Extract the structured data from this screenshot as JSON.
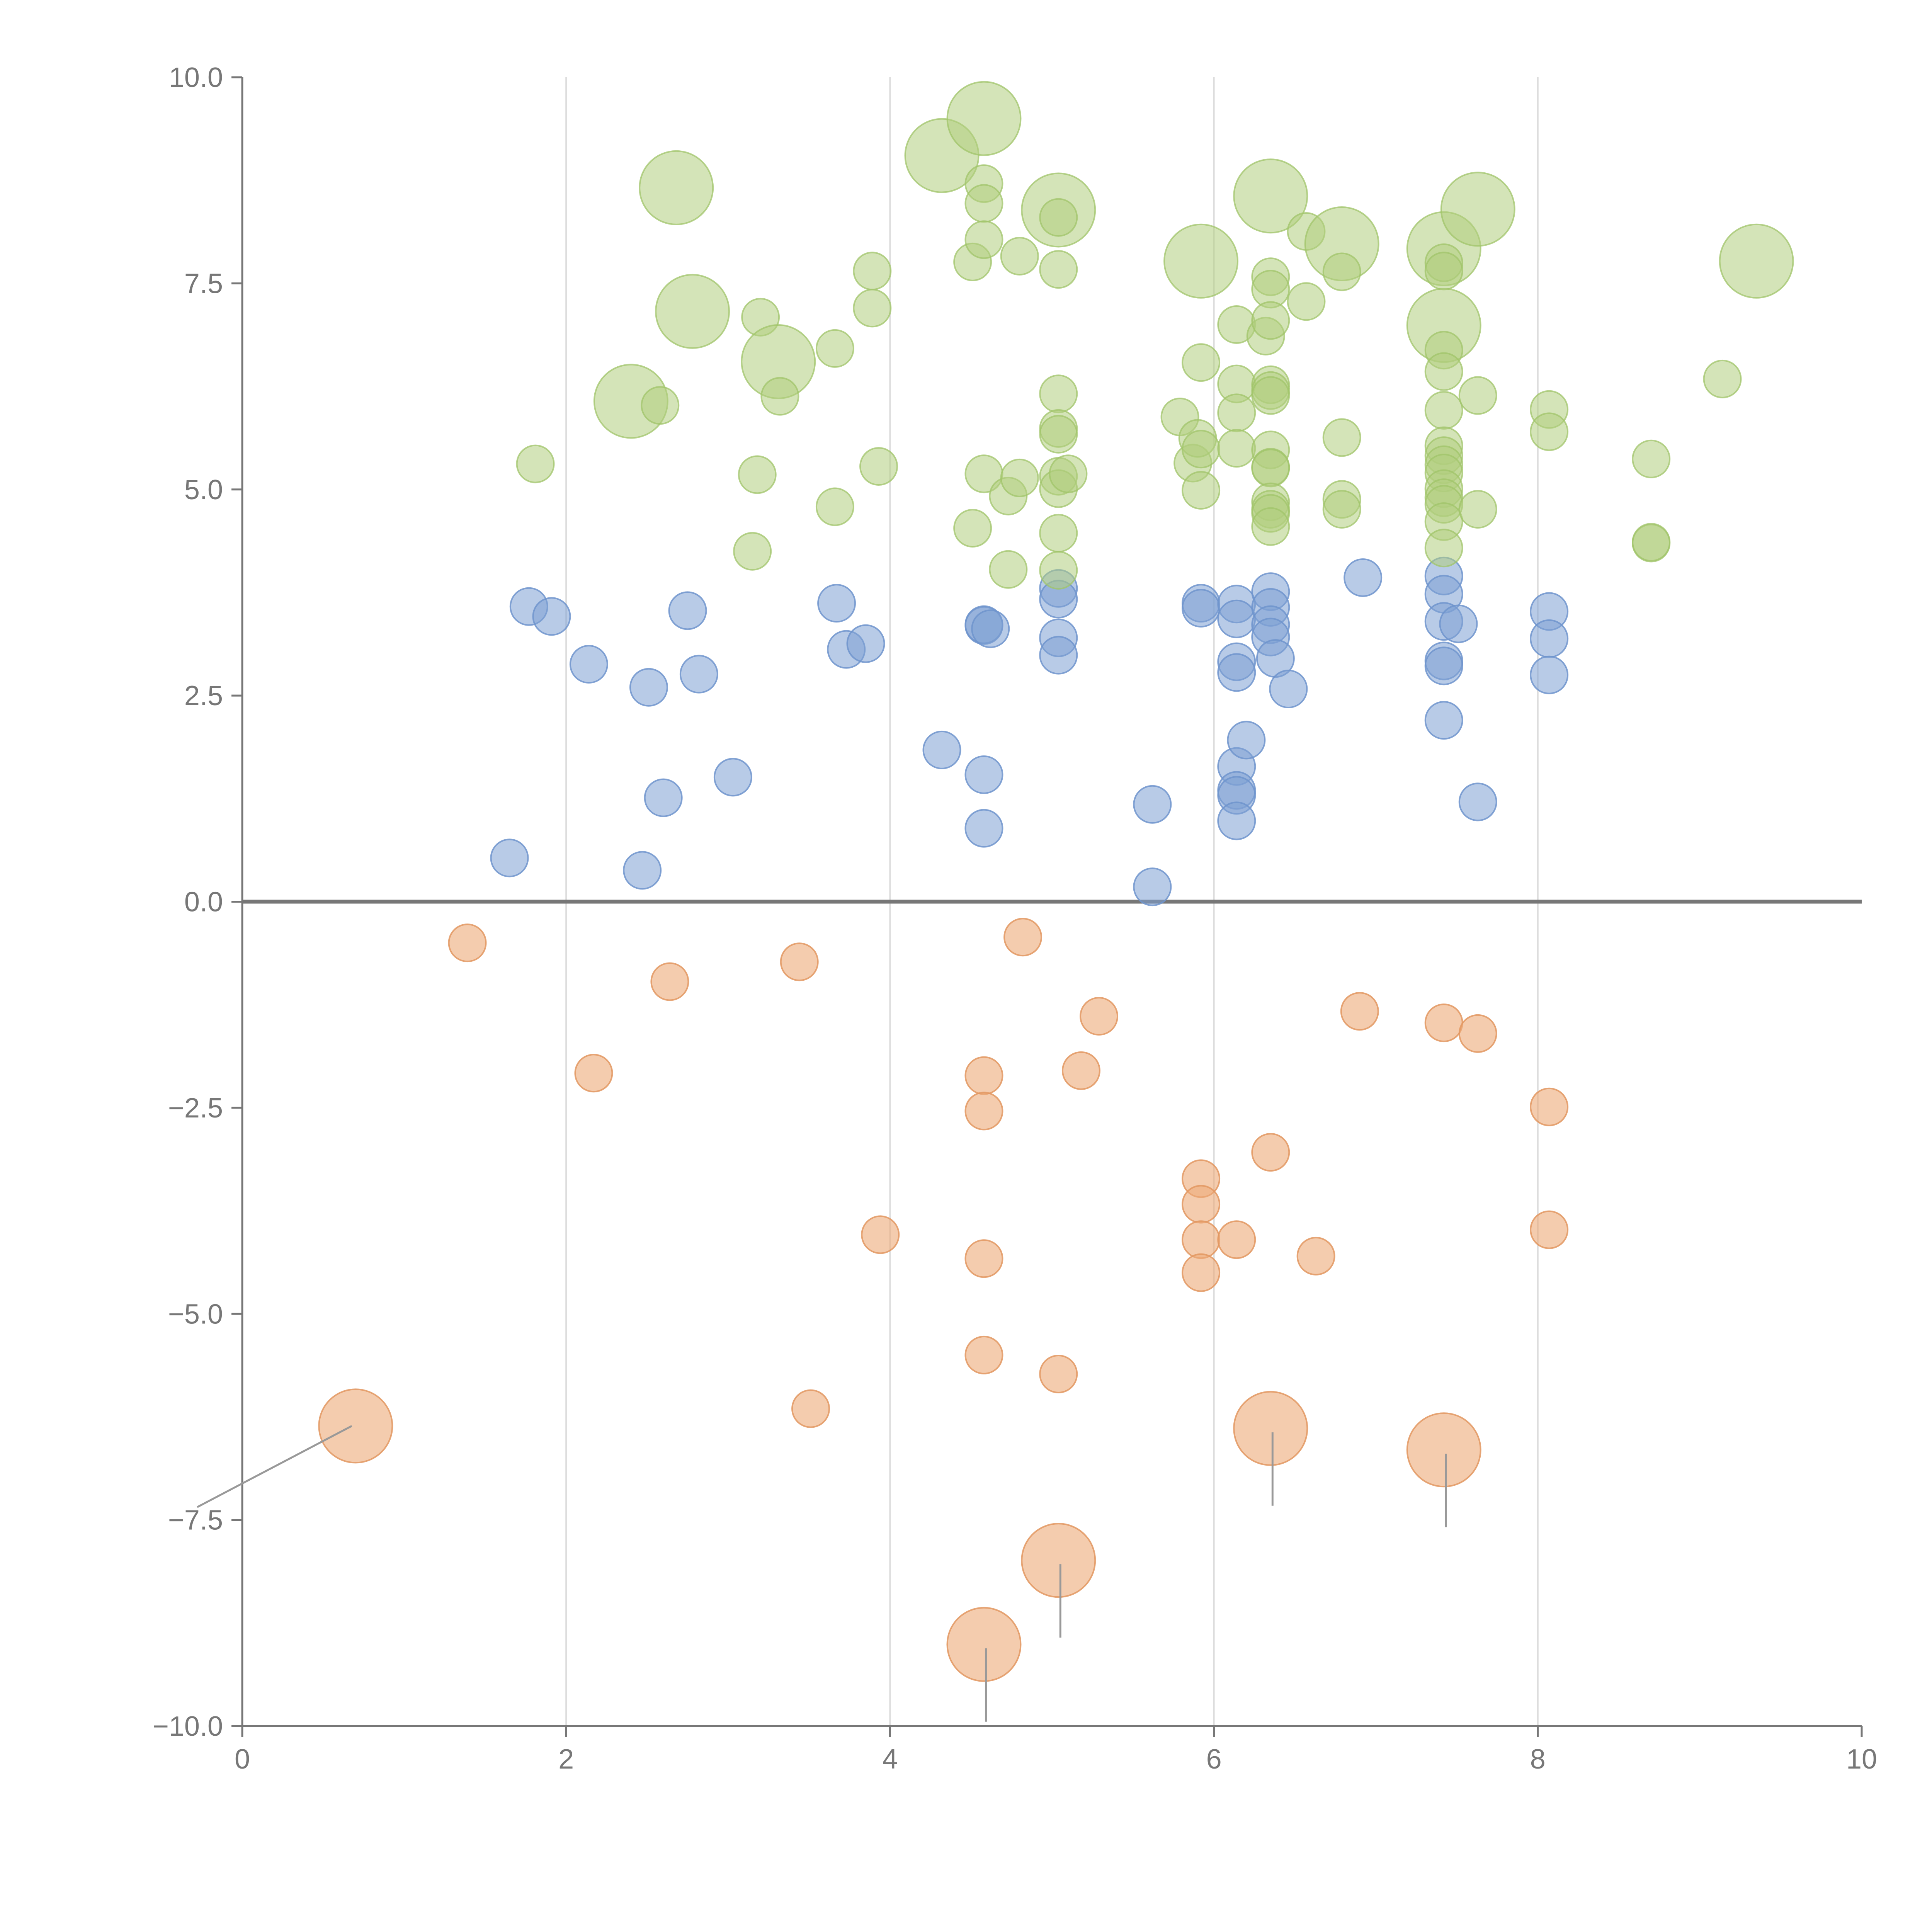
{
  "chart_data": {
    "type": "scatter",
    "subtype": "bubble",
    "title": "",
    "xlabel": "",
    "ylabel": "",
    "xlim": [
      0,
      10
    ],
    "ylim": [
      -10,
      10
    ],
    "x_ticks": [
      0,
      2,
      4,
      6,
      8,
      10
    ],
    "x_tick_labels": [
      "0",
      "2",
      "4",
      "6",
      "8",
      "10"
    ],
    "y_ticks": [
      -10,
      -7.5,
      -5,
      -2.5,
      0,
      2.5,
      5,
      7.5,
      10
    ],
    "y_tick_labels": [
      "−10.0",
      "−7.5",
      "−5.0",
      "−2.5",
      "0.0",
      "2.5",
      "5.0",
      "7.5",
      "10.0"
    ],
    "grid": "vertical lines at x ticks",
    "zero_line": true,
    "colors": {
      "blue": "#7ea0d4",
      "green": "#b0ce7e",
      "orange": "#ecaa78",
      "axis": "#777777",
      "grid": "#dddddd"
    },
    "series": [
      {
        "name": "blue",
        "color": "#7ea0d4",
        "points": [
          [
            1.65,
            0.53,
            1
          ],
          [
            1.77,
            3.58,
            1
          ],
          [
            1.91,
            3.46,
            1
          ],
          [
            2.14,
            2.88,
            1
          ],
          [
            2.47,
            0.38,
            1
          ],
          [
            2.51,
            2.6,
            1
          ],
          [
            2.6,
            1.26,
            1
          ],
          [
            2.75,
            3.53,
            1
          ],
          [
            2.82,
            2.76,
            1
          ],
          [
            3.03,
            1.51,
            1
          ],
          [
            3.67,
            3.62,
            1
          ],
          [
            3.73,
            3.06,
            1
          ],
          [
            3.85,
            3.13,
            1
          ],
          [
            4.32,
            1.84,
            1
          ],
          [
            4.58,
            3.35,
            1
          ],
          [
            4.58,
            3.36,
            1
          ],
          [
            4.58,
            1.54,
            1
          ],
          [
            4.58,
            0.89,
            1
          ],
          [
            4.62,
            3.31,
            1
          ],
          [
            5.04,
            3.8,
            1
          ],
          [
            5.04,
            3.67,
            1
          ],
          [
            5.04,
            3.2,
            1
          ],
          [
            5.04,
            2.99,
            1
          ],
          [
            5.62,
            1.18,
            1
          ],
          [
            5.62,
            0.18,
            1
          ],
          [
            5.92,
            3.62,
            1
          ],
          [
            5.92,
            3.56,
            1
          ],
          [
            6.14,
            3.61,
            1
          ],
          [
            6.14,
            3.43,
            1
          ],
          [
            6.14,
            2.91,
            1
          ],
          [
            6.14,
            2.78,
            1
          ],
          [
            6.14,
            1.64,
            1
          ],
          [
            6.14,
            1.35,
            1
          ],
          [
            6.14,
            1.29,
            1
          ],
          [
            6.14,
            0.98,
            1
          ],
          [
            6.2,
            1.96,
            1
          ],
          [
            6.35,
            3.76,
            1
          ],
          [
            6.35,
            3.57,
            1
          ],
          [
            6.35,
            3.36,
            1
          ],
          [
            6.35,
            3.21,
            1
          ],
          [
            6.38,
            2.95,
            1
          ],
          [
            6.46,
            2.58,
            1
          ],
          [
            6.92,
            3.93,
            1
          ],
          [
            7.42,
            3.95,
            1
          ],
          [
            7.42,
            3.73,
            1
          ],
          [
            7.42,
            3.4,
            1
          ],
          [
            7.42,
            2.92,
            1
          ],
          [
            7.42,
            2.86,
            1
          ],
          [
            7.42,
            2.2,
            1
          ],
          [
            7.51,
            3.37,
            1
          ],
          [
            7.63,
            1.21,
            1
          ],
          [
            8.07,
            3.52,
            1
          ],
          [
            8.07,
            3.19,
            1
          ],
          [
            8.07,
            2.75,
            1
          ]
        ]
      },
      {
        "name": "green",
        "color": "#b0ce7e",
        "points": [
          [
            1.81,
            5.31,
            1
          ],
          [
            2.4,
            6.07,
            2
          ],
          [
            2.58,
            6.02,
            1
          ],
          [
            2.68,
            8.66,
            2
          ],
          [
            2.78,
            7.16,
            2
          ],
          [
            3.15,
            4.25,
            1
          ],
          [
            3.18,
            5.18,
            1
          ],
          [
            3.2,
            7.09,
            1
          ],
          [
            3.31,
            6.55,
            2
          ],
          [
            3.32,
            6.13,
            1
          ],
          [
            3.66,
            6.71,
            1
          ],
          [
            3.66,
            4.79,
            1
          ],
          [
            3.89,
            7.65,
            1
          ],
          [
            3.89,
            7.2,
            1
          ],
          [
            3.93,
            5.28,
            1
          ],
          [
            4.32,
            9.05,
            2
          ],
          [
            4.51,
            7.76,
            1
          ],
          [
            4.51,
            4.53,
            1
          ],
          [
            4.58,
            9.5,
            2
          ],
          [
            4.58,
            8.71,
            1
          ],
          [
            4.58,
            8.47,
            1
          ],
          [
            4.58,
            8.03,
            1
          ],
          [
            4.58,
            5.19,
            1
          ],
          [
            4.73,
            4.92,
            1
          ],
          [
            4.73,
            4.03,
            1
          ],
          [
            4.8,
            7.83,
            1
          ],
          [
            4.8,
            5.14,
            1
          ],
          [
            5.04,
            8.39,
            2
          ],
          [
            5.04,
            8.3,
            1
          ],
          [
            5.04,
            7.67,
            1
          ],
          [
            5.04,
            6.16,
            1
          ],
          [
            5.04,
            5.74,
            1
          ],
          [
            5.04,
            5.67,
            1
          ],
          [
            5.04,
            5.16,
            1
          ],
          [
            5.04,
            5.01,
            1
          ],
          [
            5.04,
            4.47,
            1
          ],
          [
            5.04,
            4.02,
            1
          ],
          [
            5.1,
            5.19,
            1
          ],
          [
            5.79,
            5.88,
            1
          ],
          [
            5.87,
            5.32,
            1
          ],
          [
            5.9,
            5.62,
            1
          ],
          [
            5.92,
            7.77,
            2
          ],
          [
            5.92,
            6.54,
            1
          ],
          [
            5.92,
            5.49,
            1
          ],
          [
            5.92,
            4.99,
            1
          ],
          [
            6.14,
            7.0,
            1
          ],
          [
            6.14,
            6.28,
            1
          ],
          [
            6.14,
            5.93,
            1
          ],
          [
            6.14,
            5.5,
            1
          ],
          [
            6.32,
            6.86,
            1
          ],
          [
            6.35,
            8.56,
            2
          ],
          [
            6.35,
            7.58,
            1
          ],
          [
            6.35,
            7.43,
            1
          ],
          [
            6.35,
            7.05,
            1
          ],
          [
            6.35,
            6.27,
            1
          ],
          [
            6.35,
            6.2,
            1
          ],
          [
            6.35,
            6.14,
            1
          ],
          [
            6.35,
            5.48,
            1
          ],
          [
            6.35,
            5.27,
            1
          ],
          [
            6.35,
            5.26,
            1
          ],
          [
            6.35,
            4.85,
            1
          ],
          [
            6.35,
            4.76,
            1
          ],
          [
            6.35,
            4.71,
            1
          ],
          [
            6.35,
            4.55,
            1
          ],
          [
            6.57,
            7.28,
            1
          ],
          [
            6.57,
            8.13,
            1
          ],
          [
            6.79,
            7.98,
            2
          ],
          [
            6.79,
            7.64,
            1
          ],
          [
            6.79,
            5.63,
            1
          ],
          [
            6.79,
            4.88,
            1
          ],
          [
            6.79,
            4.76,
            1
          ],
          [
            7.42,
            7.92,
            2
          ],
          [
            7.42,
            7.75,
            1
          ],
          [
            7.42,
            7.65,
            1
          ],
          [
            7.42,
            6.99,
            2
          ],
          [
            7.42,
            6.69,
            1
          ],
          [
            7.42,
            6.43,
            1
          ],
          [
            7.42,
            5.96,
            1
          ],
          [
            7.42,
            5.53,
            1
          ],
          [
            7.42,
            5.41,
            1
          ],
          [
            7.42,
            5.3,
            1
          ],
          [
            7.42,
            5.2,
            1
          ],
          [
            7.42,
            5.01,
            1
          ],
          [
            7.42,
            4.9,
            1
          ],
          [
            7.42,
            4.82,
            1
          ],
          [
            7.42,
            4.61,
            1
          ],
          [
            7.42,
            4.29,
            1
          ],
          [
            7.63,
            8.4,
            2
          ],
          [
            7.63,
            6.14,
            1
          ],
          [
            7.63,
            4.76,
            1
          ],
          [
            8.07,
            5.97,
            1
          ],
          [
            8.07,
            5.7,
            1
          ],
          [
            8.7,
            5.37,
            1
          ],
          [
            8.7,
            4.35,
            1
          ],
          [
            8.7,
            4.36,
            1
          ],
          [
            9.14,
            6.34,
            1
          ],
          [
            9.35,
            7.77,
            2
          ]
        ]
      },
      {
        "name": "orange",
        "color": "#ecaa78",
        "points": [
          [
            0.7,
            -6.36,
            2
          ],
          [
            1.39,
            -0.5,
            1
          ],
          [
            2.17,
            -2.08,
            1
          ],
          [
            2.64,
            -0.97,
            1
          ],
          [
            3.44,
            -0.73,
            1
          ],
          [
            3.51,
            -6.15,
            1
          ],
          [
            3.94,
            -4.04,
            1
          ],
          [
            4.58,
            -2.11,
            1
          ],
          [
            4.58,
            -2.54,
            1
          ],
          [
            4.58,
            -4.33,
            1
          ],
          [
            4.58,
            -5.5,
            1
          ],
          [
            4.58,
            -9.01,
            2
          ],
          [
            4.82,
            -0.43,
            1
          ],
          [
            5.04,
            -5.73,
            1
          ],
          [
            5.04,
            -7.99,
            2
          ],
          [
            5.18,
            -2.05,
            1
          ],
          [
            5.29,
            -1.39,
            1
          ],
          [
            5.92,
            -3.36,
            1
          ],
          [
            5.92,
            -3.67,
            1
          ],
          [
            5.92,
            -4.1,
            1
          ],
          [
            5.92,
            -4.5,
            1
          ],
          [
            6.14,
            -4.1,
            1
          ],
          [
            6.35,
            -3.04,
            1
          ],
          [
            6.35,
            -6.39,
            2
          ],
          [
            6.63,
            -4.3,
            1
          ],
          [
            6.9,
            -1.33,
            1
          ],
          [
            7.42,
            -1.47,
            1
          ],
          [
            7.42,
            -6.65,
            2
          ],
          [
            7.63,
            -1.6,
            1
          ],
          [
            8.07,
            -2.49,
            1
          ],
          [
            8.07,
            -3.98,
            1
          ]
        ]
      }
    ]
  }
}
